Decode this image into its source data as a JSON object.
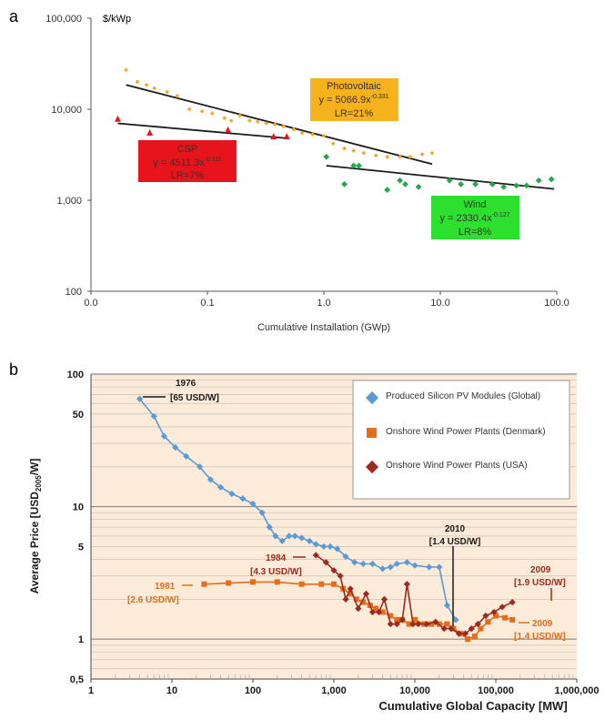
{
  "colors": {
    "pv_orange": "#F5A623",
    "csp_red": "#E8141C",
    "wind_green": "#22A84A",
    "pv_box": "#F6B21B",
    "csp_box": "#E8141C",
    "wind_box": "#2EE02E",
    "pv_blue": "#5B9BD5",
    "dk_orange": "#E46C1A",
    "usa_darkred": "#9C2A1E",
    "panel_bg": "#FBEBD8",
    "fit_line": "#1a1a1a"
  },
  "chart_data": [
    {
      "panel_label": "a",
      "type": "scatter",
      "xscale": "log",
      "yscale": "log",
      "xlim": [
        0.01,
        100
      ],
      "ylim": [
        100,
        100000
      ],
      "xlabel": "Cumulative Installation (GWp)",
      "ylabel": "$/kWp",
      "x_ticks": [
        "0.0",
        "0.1",
        "1.0",
        "10.0",
        "100.0"
      ],
      "y_ticks": [
        "100",
        "1,000",
        "10,000",
        "100,000"
      ],
      "grid": false,
      "series": [
        {
          "key": "pv",
          "marker": "diamond",
          "color_key": "pv_orange",
          "points": [
            [
              0.02,
              27000
            ],
            [
              0.025,
              20000
            ],
            [
              0.03,
              18500
            ],
            [
              0.035,
              17000
            ],
            [
              0.045,
              15500
            ],
            [
              0.055,
              14000
            ],
            [
              0.07,
              10000
            ],
            [
              0.09,
              9500
            ],
            [
              0.11,
              9000
            ],
            [
              0.14,
              8000
            ],
            [
              0.16,
              7500
            ],
            [
              0.19,
              8500
            ],
            [
              0.23,
              7500
            ],
            [
              0.27,
              7300
            ],
            [
              0.32,
              7000
            ],
            [
              0.38,
              6800
            ],
            [
              0.45,
              6500
            ],
            [
              0.55,
              6000
            ],
            [
              0.65,
              5500
            ],
            [
              0.8,
              5300
            ],
            [
              1.0,
              5100
            ],
            [
              1.2,
              4200
            ],
            [
              1.5,
              3700
            ],
            [
              1.8,
              3500
            ],
            [
              2.2,
              3300
            ],
            [
              2.8,
              3100
            ],
            [
              3.5,
              3000
            ],
            [
              4.5,
              3000
            ],
            [
              5.5,
              3000
            ],
            [
              7,
              3200
            ],
            [
              8.5,
              3300
            ]
          ]
        },
        {
          "key": "csp",
          "marker": "triangle",
          "color_key": "csp_red",
          "points": [
            [
              0.017,
              7800
            ],
            [
              0.032,
              5500
            ],
            [
              0.15,
              5900
            ],
            [
              0.37,
              5000
            ],
            [
              0.48,
              5000
            ]
          ]
        },
        {
          "key": "wind",
          "marker": "diamond",
          "color_key": "wind_green",
          "points": [
            [
              1.05,
              3000
            ],
            [
              1.5,
              1500
            ],
            [
              1.8,
              2400
            ],
            [
              2.0,
              2400
            ],
            [
              3.5,
              1300
            ],
            [
              4.5,
              1650
            ],
            [
              5.0,
              1500
            ],
            [
              6.5,
              1400
            ],
            [
              12,
              1650
            ],
            [
              15,
              1500
            ],
            [
              20,
              1500
            ],
            [
              28,
              1500
            ],
            [
              35,
              1400
            ],
            [
              45,
              1450
            ],
            [
              55,
              1450
            ],
            [
              70,
              1650
            ],
            [
              90,
              1700
            ]
          ]
        }
      ],
      "fit_lines": [
        {
          "series": "pv",
          "from": [
            0.02,
            18500
          ],
          "to": [
            8.5,
            2500
          ]
        },
        {
          "series": "csp",
          "from": [
            0.017,
            7000
          ],
          "to": [
            0.48,
            4800
          ]
        },
        {
          "series": "wind",
          "from": [
            1.05,
            2400
          ],
          "to": [
            95,
            1330
          ]
        }
      ],
      "annotations": [
        {
          "key": "pv",
          "lines": [
            "Photovoltaic",
            "y = 5066.9x",
            "LR=21%"
          ],
          "exponent": "-0.331"
        },
        {
          "key": "csp",
          "lines": [
            "CSP",
            "y = 4511.3x",
            "LR=7%"
          ],
          "exponent": "-0.111"
        },
        {
          "key": "wind",
          "lines": [
            "Wind",
            "y = 2330.4x",
            "LR=8%"
          ],
          "exponent": "-0.127"
        }
      ]
    },
    {
      "panel_label": "b",
      "type": "line",
      "xscale": "log",
      "yscale": "log",
      "xlim": [
        1,
        1000000
      ],
      "ylim": [
        0.5,
        100
      ],
      "xlabel": "Cumulative Global Capacity [MW]",
      "ylabel": "Average Price [USD",
      "ylabel_sub": "2005",
      "ylabel_end": "/W]",
      "x_ticks": [
        "1",
        "10",
        "100",
        "1,000",
        "10,000",
        "100,000",
        "1,000,000"
      ],
      "y_ticks": [
        "0,5",
        "1",
        "5",
        "10",
        "50",
        "100"
      ],
      "grid": true,
      "legend_position": "top-right",
      "series": [
        {
          "key": "pv",
          "name": "Produced Silicon PV Modules (Global)",
          "marker": "diamond",
          "color_key": "pv_blue",
          "points": [
            [
              4,
              65
            ],
            [
              6,
              48
            ],
            [
              8,
              34
            ],
            [
              11,
              28
            ],
            [
              15,
              24
            ],
            [
              22,
              20
            ],
            [
              30,
              16
            ],
            [
              40,
              14
            ],
            [
              55,
              12.5
            ],
            [
              75,
              11.5
            ],
            [
              100,
              10.5
            ],
            [
              130,
              9
            ],
            [
              160,
              7
            ],
            [
              190,
              6
            ],
            [
              230,
              5.5
            ],
            [
              280,
              6
            ],
            [
              330,
              6
            ],
            [
              400,
              5.8
            ],
            [
              500,
              5.5
            ],
            [
              600,
              5.2
            ],
            [
              750,
              5
            ],
            [
              900,
              5
            ],
            [
              1100,
              4.8
            ],
            [
              1400,
              4.2
            ],
            [
              1800,
              3.8
            ],
            [
              2300,
              3.7
            ],
            [
              3000,
              3.7
            ],
            [
              4000,
              3.4
            ],
            [
              5000,
              3.5
            ],
            [
              6000,
              3.7
            ],
            [
              8000,
              3.8
            ],
            [
              10000,
              3.6
            ],
            [
              15000,
              3.5
            ],
            [
              20000,
              3.5
            ],
            [
              25000,
              1.8
            ],
            [
              32000,
              1.4
            ]
          ]
        },
        {
          "key": "dk",
          "name": "Onshore Wind Power Plants (Denmark)",
          "marker": "square",
          "color_key": "dk_orange",
          "points": [
            [
              25,
              2.6
            ],
            [
              50,
              2.65
            ],
            [
              100,
              2.7
            ],
            [
              200,
              2.7
            ],
            [
              400,
              2.6
            ],
            [
              700,
              2.6
            ],
            [
              1000,
              2.6
            ],
            [
              1300,
              2.4
            ],
            [
              1600,
              2.2
            ],
            [
              1900,
              2.0
            ],
            [
              2300,
              1.9
            ],
            [
              2800,
              1.8
            ],
            [
              3300,
              1.7
            ],
            [
              4000,
              1.6
            ],
            [
              5000,
              1.5
            ],
            [
              6000,
              1.4
            ],
            [
              7000,
              1.4
            ],
            [
              8500,
              1.3
            ],
            [
              10000,
              1.4
            ],
            [
              13000,
              1.3
            ],
            [
              16000,
              1.3
            ],
            [
              20000,
              1.3
            ],
            [
              25000,
              1.3
            ],
            [
              30000,
              1.2
            ],
            [
              37000,
              1.1
            ],
            [
              45000,
              1.0
            ],
            [
              55000,
              1.05
            ],
            [
              65000,
              1.2
            ],
            [
              80000,
              1.35
            ],
            [
              100000,
              1.5
            ],
            [
              130000,
              1.45
            ],
            [
              160000,
              1.4
            ]
          ]
        },
        {
          "key": "usa",
          "name": "Onshore Wind Power Plants (USA)",
          "marker": "diamond",
          "color_key": "usa_darkred",
          "points": [
            [
              600,
              4.3
            ],
            [
              800,
              3.8
            ],
            [
              1000,
              3.3
            ],
            [
              1200,
              3.0
            ],
            [
              1400,
              2.0
            ],
            [
              1600,
              2.4
            ],
            [
              2000,
              1.7
            ],
            [
              2500,
              2.2
            ],
            [
              3000,
              1.6
            ],
            [
              3600,
              1.6
            ],
            [
              4200,
              2.0
            ],
            [
              5000,
              1.3
            ],
            [
              6000,
              1.3
            ],
            [
              7000,
              1.4
            ],
            [
              8000,
              2.6
            ],
            [
              9500,
              1.3
            ],
            [
              11000,
              1.3
            ],
            [
              14000,
              1.3
            ],
            [
              18000,
              1.35
            ],
            [
              23000,
              1.2
            ],
            [
              28000,
              1.2
            ],
            [
              35000,
              1.1
            ],
            [
              42000,
              1.1
            ],
            [
              50000,
              1.2
            ],
            [
              60000,
              1.3
            ],
            [
              75000,
              1.5
            ],
            [
              95000,
              1.6
            ],
            [
              120000,
              1.75
            ],
            [
              160000,
              1.9
            ]
          ]
        }
      ],
      "annotations": [
        {
          "lines": [
            "1976",
            "[65 USD/W]"
          ],
          "color_key": "fit_line"
        },
        {
          "lines": [
            "1981",
            "[2.6 USD/W]"
          ],
          "color_key": "dk_orange"
        },
        {
          "lines": [
            "1984",
            "[4.3 USD/W]"
          ],
          "color_key": "usa_darkred"
        },
        {
          "lines": [
            "2010",
            "[1.4 USD/W]"
          ],
          "color_key": "fit_line"
        },
        {
          "lines": [
            "2009",
            "[1.9 USD/W]"
          ],
          "color_key": "usa_darkred"
        },
        {
          "lines": [
            "2009",
            "[1.4 USD/W]"
          ],
          "color_key": "dk_orange"
        }
      ]
    }
  ]
}
